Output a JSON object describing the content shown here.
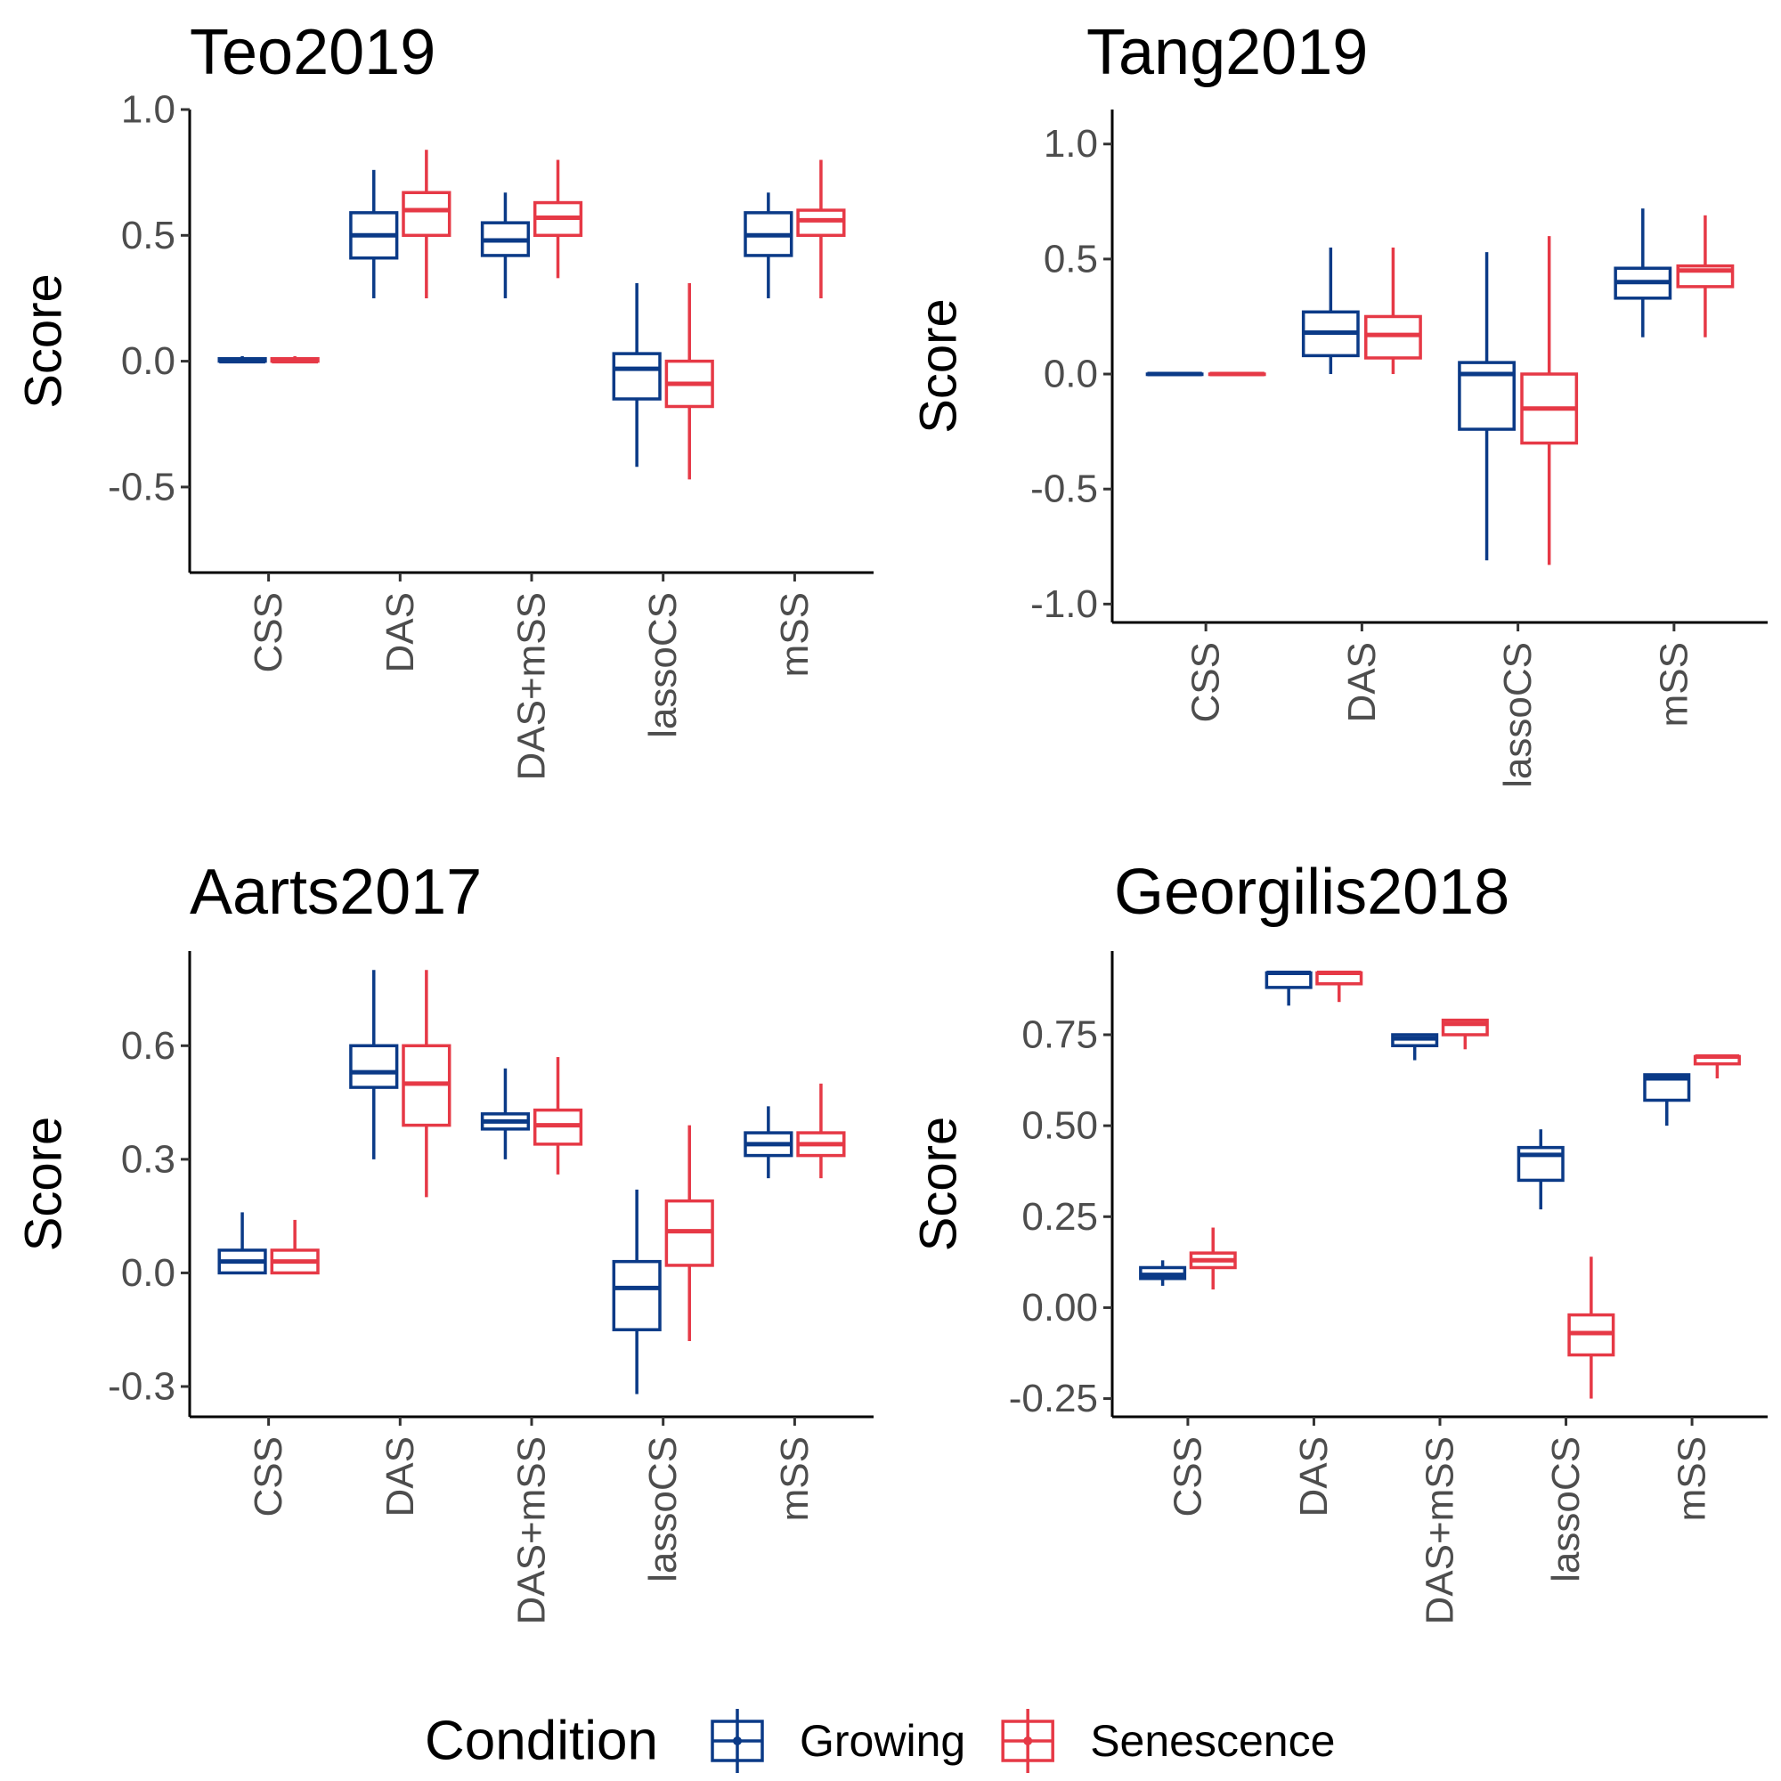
{
  "chart_data": [
    {
      "type": "boxplot",
      "title": "Teo2019",
      "y_label": "Score",
      "categories": [
        "CSS",
        "DAS",
        "DAS+mSS",
        "lassoCS",
        "mSS"
      ],
      "ylim": [
        -0.84,
        1.0
      ],
      "yticks": [
        {
          "value": -0.5,
          "label": "-0.5"
        },
        {
          "value": 0,
          "label": "0.0"
        },
        {
          "value": 0.5,
          "label": "0.5"
        },
        {
          "value": 1,
          "label": "1.0"
        }
      ],
      "series": [
        {
          "name": "Growing",
          "color": "#0b3a87",
          "boxes": [
            {
              "min": 0,
              "q1": 0,
              "median": 0,
              "q3": 0.01,
              "max": 0.02
            },
            {
              "min": 0.25,
              "q1": 0.41,
              "median": 0.5,
              "q3": 0.59,
              "max": 0.76
            },
            {
              "min": 0.25,
              "q1": 0.42,
              "median": 0.48,
              "q3": 0.55,
              "max": 0.67
            },
            {
              "min": -0.42,
              "q1": -0.15,
              "median": -0.03,
              "q3": 0.03,
              "max": 0.31
            },
            {
              "min": 0.25,
              "q1": 0.42,
              "median": 0.5,
              "q3": 0.59,
              "max": 0.67
            }
          ]
        },
        {
          "name": "Senescence",
          "color": "#e63946",
          "boxes": [
            {
              "min": 0,
              "q1": 0,
              "median": 0,
              "q3": 0.01,
              "max": 0.02
            },
            {
              "min": 0.25,
              "q1": 0.5,
              "median": 0.6,
              "q3": 0.67,
              "max": 0.84
            },
            {
              "min": 0.33,
              "q1": 0.5,
              "median": 0.57,
              "q3": 0.63,
              "max": 0.8
            },
            {
              "min": -0.47,
              "q1": -0.18,
              "median": -0.09,
              "q3": 0,
              "max": 0.31
            },
            {
              "min": 0.25,
              "q1": 0.5,
              "median": 0.56,
              "q3": 0.6,
              "max": 0.8
            }
          ]
        }
      ]
    },
    {
      "type": "boxplot",
      "title": "Tang2019",
      "y_label": "Score",
      "categories": [
        "CSS",
        "DAS",
        "lassoCS",
        "mSS"
      ],
      "ylim": [
        -1.08,
        1.15
      ],
      "yticks": [
        {
          "value": -1,
          "label": "-1.0"
        },
        {
          "value": -0.5,
          "label": "-0.5"
        },
        {
          "value": 0,
          "label": "0.0"
        },
        {
          "value": 0.5,
          "label": "0.5"
        },
        {
          "value": 1,
          "label": "1.0"
        }
      ],
      "series": [
        {
          "name": "Growing",
          "color": "#0b3a87",
          "boxes": [
            {
              "min": 0,
              "q1": 0,
              "median": 0,
              "q3": 0,
              "max": 0
            },
            {
              "min": 0,
              "q1": 0.08,
              "median": 0.18,
              "q3": 0.27,
              "max": 0.55
            },
            {
              "min": -0.81,
              "q1": -0.24,
              "median": 0,
              "q3": 0.05,
              "max": 0.53
            },
            {
              "min": 0.16,
              "q1": 0.33,
              "median": 0.4,
              "q3": 0.46,
              "max": 0.72
            }
          ]
        },
        {
          "name": "Senescence",
          "color": "#e63946",
          "boxes": [
            {
              "min": 0,
              "q1": 0,
              "median": 0,
              "q3": 0,
              "max": 0
            },
            {
              "min": 0,
              "q1": 0.07,
              "median": 0.17,
              "q3": 0.25,
              "max": 0.55
            },
            {
              "min": -0.83,
              "q1": -0.3,
              "median": -0.15,
              "q3": 0,
              "max": 0.6
            },
            {
              "min": 0.16,
              "q1": 0.38,
              "median": 0.45,
              "q3": 0.47,
              "max": 0.69
            }
          ]
        }
      ]
    },
    {
      "type": "boxplot",
      "title": "Aarts2017",
      "y_label": "Score",
      "categories": [
        "CSS",
        "DAS",
        "DAS+mSS",
        "lassoCS",
        "mSS"
      ],
      "ylim": [
        -0.38,
        0.85
      ],
      "yticks": [
        {
          "value": -0.3,
          "label": "-0.3"
        },
        {
          "value": 0,
          "label": "0.0"
        },
        {
          "value": 0.3,
          "label": "0.3"
        },
        {
          "value": 0.6,
          "label": "0.6"
        }
      ],
      "series": [
        {
          "name": "Growing",
          "color": "#0b3a87",
          "boxes": [
            {
              "min": 0,
              "q1": 0,
              "median": 0.03,
              "q3": 0.06,
              "max": 0.16
            },
            {
              "min": 0.3,
              "q1": 0.49,
              "median": 0.53,
              "q3": 0.6,
              "max": 0.8
            },
            {
              "min": 0.3,
              "q1": 0.38,
              "median": 0.4,
              "q3": 0.42,
              "max": 0.54
            },
            {
              "min": -0.32,
              "q1": -0.15,
              "median": -0.04,
              "q3": 0.03,
              "max": 0.22
            },
            {
              "min": 0.25,
              "q1": 0.31,
              "median": 0.34,
              "q3": 0.37,
              "max": 0.44
            }
          ]
        },
        {
          "name": "Senescence",
          "color": "#e63946",
          "boxes": [
            {
              "min": 0,
              "q1": 0,
              "median": 0.03,
              "q3": 0.06,
              "max": 0.14
            },
            {
              "min": 0.2,
              "q1": 0.39,
              "median": 0.5,
              "q3": 0.6,
              "max": 0.8
            },
            {
              "min": 0.26,
              "q1": 0.34,
              "median": 0.39,
              "q3": 0.43,
              "max": 0.57
            },
            {
              "min": -0.18,
              "q1": 0.02,
              "median": 0.11,
              "q3": 0.19,
              "max": 0.39
            },
            {
              "min": 0.25,
              "q1": 0.31,
              "median": 0.34,
              "q3": 0.37,
              "max": 0.5
            }
          ]
        }
      ]
    },
    {
      "type": "boxplot",
      "title": "Georgilis2018",
      "y_label": "Score",
      "categories": [
        "CSS",
        "DAS",
        "DAS+mSS",
        "lassoCS",
        "mSS"
      ],
      "ylim": [
        -0.3,
        0.98
      ],
      "yticks": [
        {
          "value": -0.25,
          "label": "-0.25"
        },
        {
          "value": 0,
          "label": "0.00"
        },
        {
          "value": 0.25,
          "label": "0.25"
        },
        {
          "value": 0.5,
          "label": "0.50"
        },
        {
          "value": 0.75,
          "label": "0.75"
        }
      ],
      "series": [
        {
          "name": "Growing",
          "color": "#0b3a87",
          "boxes": [
            {
              "min": 0.06,
              "q1": 0.08,
              "median": 0.09,
              "q3": 0.11,
              "max": 0.13
            },
            {
              "min": 0.83,
              "q1": 0.88,
              "median": 0.92,
              "q3": 0.92,
              "max": 0.92
            },
            {
              "min": 0.68,
              "q1": 0.72,
              "median": 0.74,
              "q3": 0.75,
              "max": 0.75
            },
            {
              "min": 0.27,
              "q1": 0.35,
              "median": 0.42,
              "q3": 0.44,
              "max": 0.49
            },
            {
              "min": 0.5,
              "q1": 0.57,
              "median": 0.63,
              "q3": 0.64,
              "max": 0.64
            }
          ]
        },
        {
          "name": "Senescence",
          "color": "#e63946",
          "boxes": [
            {
              "min": 0.05,
              "q1": 0.11,
              "median": 0.13,
              "q3": 0.15,
              "max": 0.22
            },
            {
              "min": 0.84,
              "q1": 0.89,
              "median": 0.92,
              "q3": 0.92,
              "max": 0.92
            },
            {
              "min": 0.71,
              "q1": 0.75,
              "median": 0.78,
              "q3": 0.79,
              "max": 0.79
            },
            {
              "min": -0.25,
              "q1": -0.13,
              "median": -0.07,
              "q3": -0.02,
              "max": 0.14
            },
            {
              "min": 0.63,
              "q1": 0.67,
              "median": 0.69,
              "q3": 0.69,
              "max": 0.69
            }
          ]
        }
      ]
    }
  ],
  "legend": {
    "title": "Condition",
    "position": "bottom"
  }
}
